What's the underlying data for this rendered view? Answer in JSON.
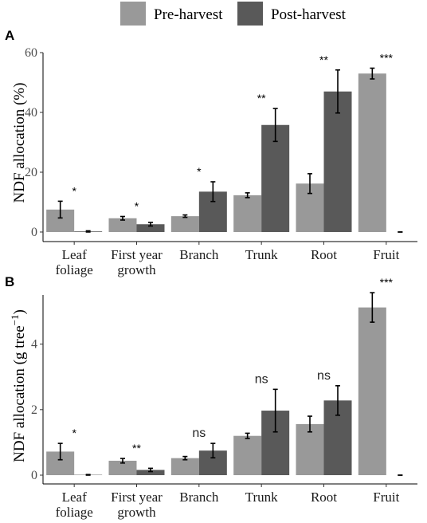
{
  "legend": {
    "items": [
      {
        "label": "Pre-harvest",
        "color": "#999999"
      },
      {
        "label": "Post-harvest",
        "color": "#595959"
      }
    ]
  },
  "chart_data": [
    {
      "type": "bar",
      "panel": "A",
      "ylabel": "NDF allocation (%)",
      "ylim": [
        0,
        60
      ],
      "yticks": [
        0,
        20,
        40,
        60
      ],
      "categories": [
        [
          "Leaf",
          "foliage"
        ],
        [
          "First year",
          "growth"
        ],
        [
          "Branch"
        ],
        [
          "Trunk"
        ],
        [
          "Root"
        ],
        [
          "Fruit"
        ]
      ],
      "series": [
        {
          "name": "Pre-harvest",
          "values": [
            7.5,
            4.6,
            5.3,
            12.3,
            16.2,
            53.0
          ],
          "errors": [
            2.8,
            0.6,
            0.4,
            0.8,
            3.3,
            1.8
          ]
        },
        {
          "name": "Post-harvest",
          "values": [
            0.2,
            2.6,
            13.5,
            35.8,
            47.0,
            0.0
          ],
          "errors": [
            0.2,
            0.6,
            3.3,
            5.5,
            7.2,
            0.0
          ]
        }
      ],
      "significance": [
        "*",
        "*",
        "*",
        "**",
        "**",
        "***"
      ],
      "grid": false
    },
    {
      "type": "bar",
      "panel": "B",
      "ylabel": "NDF allocation (g tree",
      "ylabel_sup": "−1",
      "ylabel_end": ")",
      "ylim": [
        0,
        5.5
      ],
      "yticks": [
        0,
        2,
        4
      ],
      "categories": [
        [
          "Leaf",
          "foliage"
        ],
        [
          "First year",
          "growth"
        ],
        [
          "Branch"
        ],
        [
          "Trunk"
        ],
        [
          "Root"
        ],
        [
          "Fruit"
        ]
      ],
      "series": [
        {
          "name": "Pre-harvest",
          "values": [
            0.72,
            0.44,
            0.52,
            1.2,
            1.56,
            5.12
          ],
          "errors": [
            0.25,
            0.07,
            0.05,
            0.08,
            0.24,
            0.45
          ]
        },
        {
          "name": "Post-harvest",
          "values": [
            0.01,
            0.16,
            0.75,
            1.97,
            2.28,
            0.0
          ],
          "errors": [
            0.01,
            0.05,
            0.22,
            0.65,
            0.45,
            0.0
          ]
        }
      ],
      "significance": [
        "*",
        "**",
        "ns",
        "ns",
        "ns",
        "***"
      ],
      "grid": false
    }
  ]
}
